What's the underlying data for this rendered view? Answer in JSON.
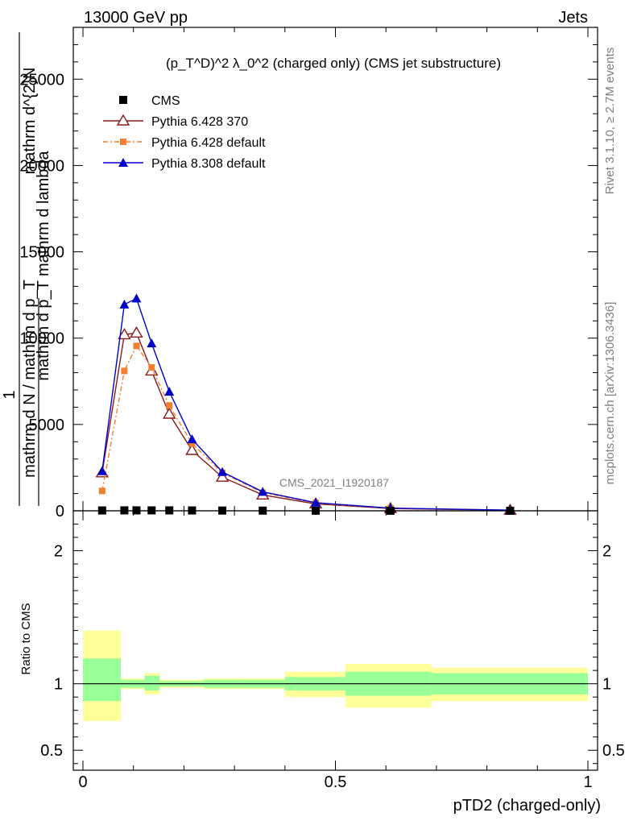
{
  "header": {
    "left": "13000 GeV pp",
    "right": "Jets"
  },
  "side_labels": {
    "rivet": "Rivet 3.1.10, ≥ 2.7M events",
    "mcplots": "mcplots.cern.ch [arXiv:1306.3436]"
  },
  "watermark": "CMS_2021_I1920187",
  "ratio_ylabel": "Ratio to CMS",
  "main_ylabel": {
    "numerator": "mathrm d^{2}N",
    "denominator": "mathrm d p_T mathrm d lambda",
    "front": "1",
    "prefix": "mathrm d N / mathrm d p_T"
  },
  "chart_data": {
    "type": "line",
    "title": "(p_T^D)^2 λ_0^2 (charged only) (CMS jet substructure)",
    "xlabel": "pTD2 (charged-only)",
    "xlim": [
      0,
      1
    ],
    "ylim": [
      0,
      28000
    ],
    "xticks": [
      "0",
      "0.5",
      "1"
    ],
    "yticks": [
      "0",
      "5000",
      "10000",
      "15000",
      "20000",
      "25000"
    ],
    "ratio_ylim": [
      0.35,
      2.3
    ],
    "ratio_yticks": [
      "0.5",
      "1",
      "2"
    ],
    "legend_position": "top-left",
    "series": [
      {
        "name": "CMS",
        "color": "#000000",
        "marker": "square",
        "x": [
          0.038,
          0.082,
          0.106,
          0.136,
          0.171,
          0.216,
          0.276,
          0.356,
          0.461,
          0.609,
          0.846
        ],
        "values": [
          20,
          25,
          25,
          25,
          25,
          20,
          15,
          10,
          6,
          3,
          1
        ]
      },
      {
        "name": "Pythia 6.428 370",
        "color": "#8b1a1a",
        "marker": "open-triangle",
        "x": [
          0.038,
          0.082,
          0.106,
          0.136,
          0.171,
          0.216,
          0.276,
          0.356,
          0.461,
          0.609,
          0.846
        ],
        "values": [
          2200,
          10200,
          10300,
          8100,
          5600,
          3500,
          1950,
          920,
          400,
          130,
          30
        ]
      },
      {
        "name": "Pythia 6.428 default",
        "color": "#f07f2f",
        "marker": "filled-square",
        "x": [
          0.038,
          0.082,
          0.106,
          0.136,
          0.171,
          0.216,
          0.276,
          0.356,
          0.461,
          0.609,
          0.846
        ],
        "values": [
          1150,
          8100,
          9550,
          8300,
          6100,
          3900,
          2200,
          1050,
          450,
          150,
          35
        ]
      },
      {
        "name": "Pythia 8.308 default",
        "color": "#0000cc",
        "marker": "filled-triangle",
        "x": [
          0.038,
          0.082,
          0.106,
          0.136,
          0.171,
          0.216,
          0.276,
          0.356,
          0.461,
          0.609,
          0.846
        ],
        "values": [
          2300,
          11950,
          12300,
          9700,
          6900,
          4150,
          2250,
          1100,
          470,
          155,
          40
        ]
      }
    ],
    "ratio_bands": {
      "edges": [
        0.0,
        0.075,
        0.09,
        0.122,
        0.152,
        0.19,
        0.24,
        0.312,
        0.4,
        0.52,
        0.69,
        1.0
      ],
      "inner_low": [
        0.87,
        0.97,
        0.97,
        0.95,
        0.98,
        0.98,
        0.97,
        0.97,
        0.95,
        0.91,
        0.92
      ],
      "inner_high": [
        1.19,
        1.03,
        1.03,
        1.06,
        1.02,
        1.02,
        1.03,
        1.03,
        1.05,
        1.09,
        1.08
      ],
      "outer_low": [
        0.72,
        0.96,
        0.96,
        0.92,
        0.97,
        0.97,
        0.96,
        0.96,
        0.9,
        0.82,
        0.87
      ],
      "outer_high": [
        1.4,
        1.04,
        1.04,
        1.08,
        1.03,
        1.03,
        1.04,
        1.04,
        1.09,
        1.15,
        1.12
      ]
    }
  }
}
